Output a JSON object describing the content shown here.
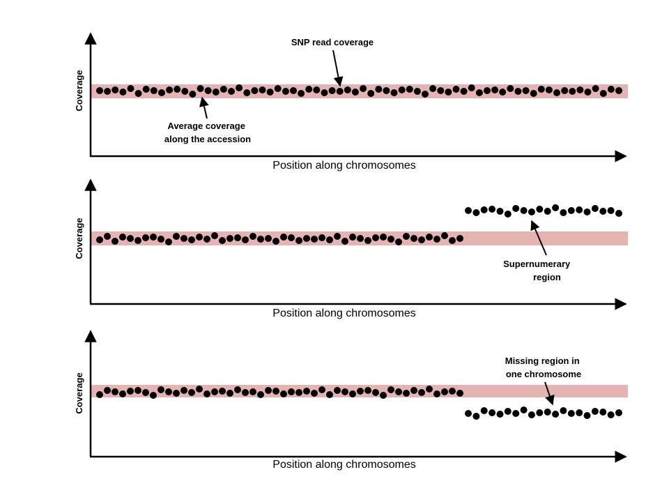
{
  "colors": {
    "band": "#e6b3b3",
    "dots": "#000000",
    "axes": "#000000"
  },
  "panels": [
    {
      "y_label": "Coverage",
      "x_label": "Position along chromosomes",
      "annotations": [
        {
          "lines": [
            "SNP read coverage"
          ]
        },
        {
          "lines": [
            "Average coverage",
            "along the accession"
          ]
        }
      ]
    },
    {
      "y_label": "Coverage",
      "x_label": "Position along chromosomes",
      "annotations": [
        {
          "lines": [
            "Supernumerary",
            "region"
          ]
        }
      ]
    },
    {
      "y_label": "Coverage",
      "x_label": "Position along chromosomes",
      "annotations": [
        {
          "lines": [
            "Missing region in",
            "one chromosome"
          ]
        }
      ]
    }
  ]
}
